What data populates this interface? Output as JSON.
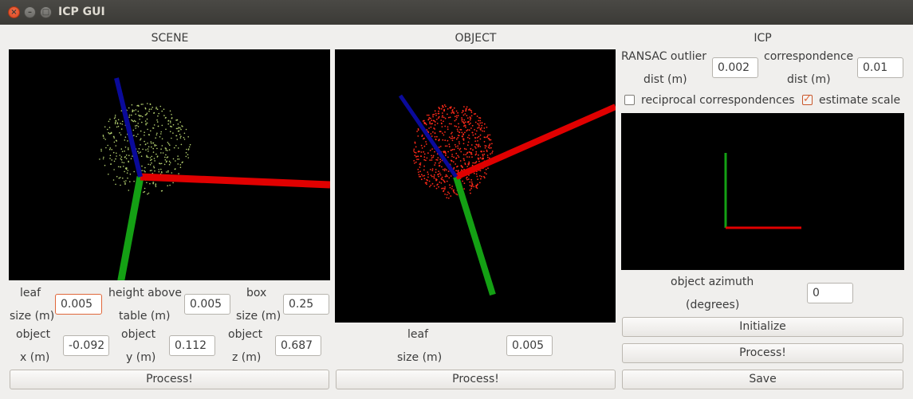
{
  "window": {
    "title": "ICP GUI"
  },
  "scene": {
    "header": "SCENE",
    "leaf_label_1": "leaf",
    "leaf_label_2": "size (m)",
    "leaf_value": "0.005",
    "height_label_1": "height above",
    "height_label_2": "table (m)",
    "height_value": "0.005",
    "box_label_1": "box",
    "box_label_2": "size (m)",
    "box_value": "0.25",
    "objx_label_1": "object",
    "objx_label_2": "x (m)",
    "objx_value": "-0.092",
    "objy_label_1": "object",
    "objy_label_2": "y (m)",
    "objy_value": "0.112",
    "objz_label_1": "object",
    "objz_label_2": "z (m)",
    "objz_value": "0.687",
    "process_label": "Process!"
  },
  "object": {
    "header": "OBJECT",
    "leaf_label_1": "leaf",
    "leaf_label_2": "size (m)",
    "leaf_value": "0.005",
    "process_label": "Process!"
  },
  "icp": {
    "header": "ICP",
    "ransac_label_1": "RANSAC outlier",
    "ransac_label_2": "dist (m)",
    "ransac_value": "0.002",
    "corr_label_1": "correspondence",
    "corr_label_2": "dist (m)",
    "corr_value": "0.01",
    "reciprocal_label": "reciprocal correspondences",
    "reciprocal_checked": false,
    "estimate_scale_label": "estimate scale",
    "estimate_scale_checked": true,
    "azimuth_label_1": "object azimuth",
    "azimuth_label_2": "(degrees)",
    "azimuth_value": "0",
    "initialize_label": "Initialize",
    "process_label": "Process!",
    "save_label": "Save"
  },
  "colors": {
    "axis_x": "#e00000",
    "axis_y": "#14a014",
    "axis_z": "#0a0a9a",
    "scene_points": "#b4d070",
    "object_points": "#ff2a1a"
  }
}
